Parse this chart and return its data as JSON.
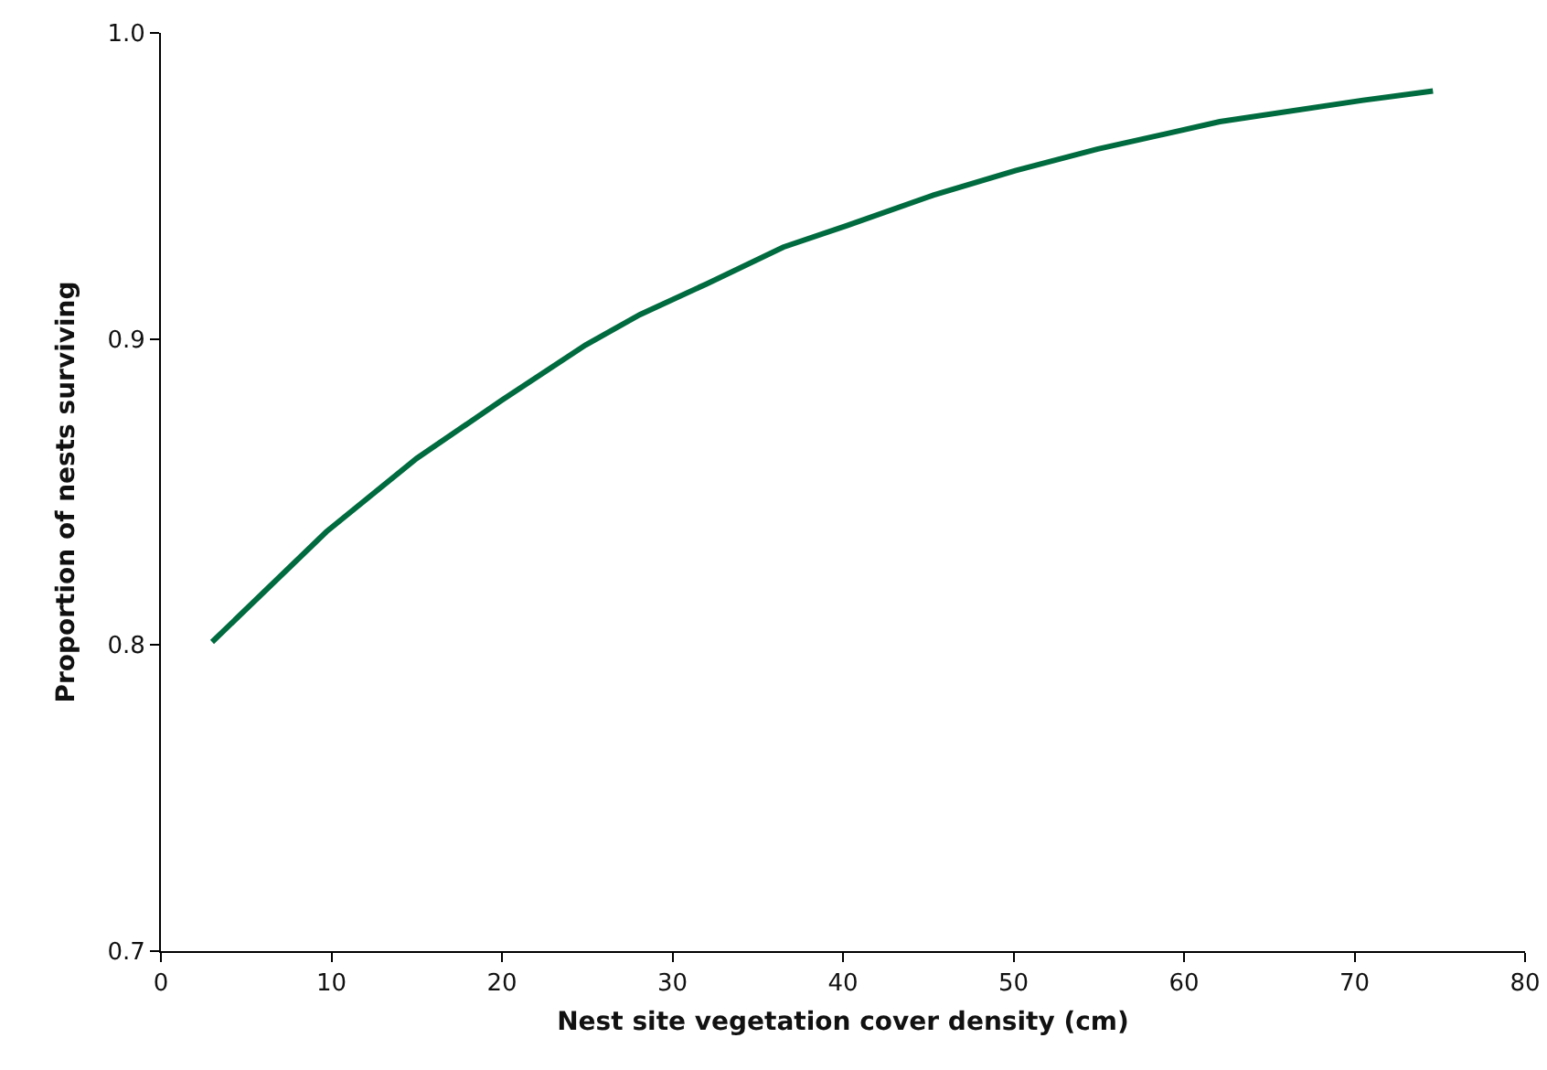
{
  "chart_data": {
    "type": "line",
    "xlabel": "Nest site vegetation cover density (cm)",
    "ylabel": "Proportion of nests surviving",
    "series": [
      {
        "color": "#006b3f",
        "x": [
          3,
          9.7,
          15,
          20,
          24.9,
          28.1,
          32,
          36.5,
          40.2,
          45.3,
          50.1,
          54.9,
          62.1,
          70.5,
          74.6
        ],
        "values": [
          0.801,
          0.837,
          0.861,
          0.88,
          0.898,
          0.908,
          0.918,
          0.93,
          0.937,
          0.947,
          0.955,
          0.962,
          0.971,
          0.978,
          0.981
        ]
      }
    ],
    "xlim": [
      0,
      80
    ],
    "xticks": [
      0,
      10,
      20,
      30,
      40,
      50,
      60,
      70,
      80
    ],
    "ylim": [
      0.7,
      1.0
    ],
    "yticks": [
      0.7,
      0.8,
      0.9,
      {
        "value": 1.0,
        "label": "1.0"
      }
    ],
    "marker": "none",
    "line_style": "solid"
  }
}
